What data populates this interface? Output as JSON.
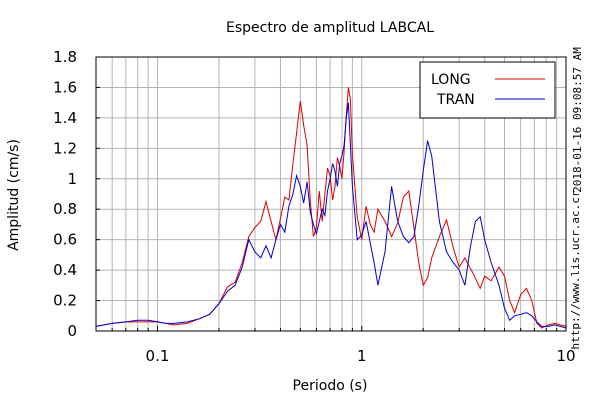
{
  "chart_data": {
    "type": "line",
    "title": "Espectro de amplitud LABCAL",
    "xlabel": "Periodo (s)",
    "ylabel": "Amplitud (cm/s)",
    "xscale": "log",
    "xlim": [
      0.05,
      10
    ],
    "ylim": [
      0,
      1.8
    ],
    "grid": true,
    "legend_position": "top-right",
    "x_ticks": [
      {
        "value": 0.1,
        "label": "0.1"
      },
      {
        "value": 1,
        "label": "1"
      },
      {
        "value": 10,
        "label": "10"
      }
    ],
    "y_ticks": [
      {
        "value": 0,
        "label": "0"
      },
      {
        "value": 0.2,
        "label": "0.2"
      },
      {
        "value": 0.4,
        "label": "0.4"
      },
      {
        "value": 0.6,
        "label": "0.6"
      },
      {
        "value": 0.8,
        "label": "0.8"
      },
      {
        "value": 1.0,
        "label": "1"
      },
      {
        "value": 1.2,
        "label": "1.2"
      },
      {
        "value": 1.4,
        "label": "1.4"
      },
      {
        "value": 1.6,
        "label": "1.6"
      },
      {
        "value": 1.8,
        "label": "1.8"
      }
    ],
    "series": [
      {
        "name": "LONG",
        "color": "#dd0000",
        "points": [
          [
            0.05,
            0.03
          ],
          [
            0.06,
            0.05
          ],
          [
            0.07,
            0.06
          ],
          [
            0.08,
            0.06
          ],
          [
            0.09,
            0.06
          ],
          [
            0.1,
            0.06
          ],
          [
            0.11,
            0.05
          ],
          [
            0.12,
            0.04
          ],
          [
            0.14,
            0.05
          ],
          [
            0.16,
            0.08
          ],
          [
            0.18,
            0.11
          ],
          [
            0.2,
            0.18
          ],
          [
            0.22,
            0.29
          ],
          [
            0.24,
            0.32
          ],
          [
            0.26,
            0.45
          ],
          [
            0.28,
            0.62
          ],
          [
            0.3,
            0.68
          ],
          [
            0.32,
            0.72
          ],
          [
            0.34,
            0.85
          ],
          [
            0.36,
            0.72
          ],
          [
            0.38,
            0.6
          ],
          [
            0.4,
            0.74
          ],
          [
            0.42,
            0.88
          ],
          [
            0.44,
            0.86
          ],
          [
            0.46,
            1.1
          ],
          [
            0.48,
            1.3
          ],
          [
            0.5,
            1.51
          ],
          [
            0.52,
            1.35
          ],
          [
            0.54,
            1.22
          ],
          [
            0.56,
            0.85
          ],
          [
            0.58,
            0.62
          ],
          [
            0.6,
            0.68
          ],
          [
            0.62,
            0.92
          ],
          [
            0.64,
            0.72
          ],
          [
            0.66,
            0.9
          ],
          [
            0.68,
            1.07
          ],
          [
            0.7,
            1.02
          ],
          [
            0.72,
            0.86
          ],
          [
            0.74,
            0.95
          ],
          [
            0.76,
            1.14
          ],
          [
            0.78,
            1.08
          ],
          [
            0.8,
            1.0
          ],
          [
            0.82,
            1.18
          ],
          [
            0.84,
            1.42
          ],
          [
            0.86,
            1.6
          ],
          [
            0.88,
            1.52
          ],
          [
            0.9,
            1.16
          ],
          [
            0.95,
            0.75
          ],
          [
            1.0,
            0.6
          ],
          [
            1.05,
            0.82
          ],
          [
            1.1,
            0.7
          ],
          [
            1.15,
            0.65
          ],
          [
            1.2,
            0.8
          ],
          [
            1.3,
            0.72
          ],
          [
            1.4,
            0.62
          ],
          [
            1.5,
            0.71
          ],
          [
            1.6,
            0.88
          ],
          [
            1.7,
            0.92
          ],
          [
            1.8,
            0.68
          ],
          [
            1.9,
            0.45
          ],
          [
            2.0,
            0.3
          ],
          [
            2.1,
            0.35
          ],
          [
            2.2,
            0.48
          ],
          [
            2.4,
            0.62
          ],
          [
            2.6,
            0.73
          ],
          [
            2.8,
            0.55
          ],
          [
            3.0,
            0.42
          ],
          [
            3.2,
            0.48
          ],
          [
            3.5,
            0.38
          ],
          [
            3.8,
            0.28
          ],
          [
            4.0,
            0.36
          ],
          [
            4.3,
            0.33
          ],
          [
            4.7,
            0.42
          ],
          [
            5.0,
            0.36
          ],
          [
            5.3,
            0.2
          ],
          [
            5.6,
            0.12
          ],
          [
            6.0,
            0.24
          ],
          [
            6.4,
            0.28
          ],
          [
            6.8,
            0.2
          ],
          [
            7.2,
            0.05
          ],
          [
            7.6,
            0.02
          ],
          [
            8.2,
            0.04
          ],
          [
            8.8,
            0.05
          ],
          [
            9.4,
            0.04
          ],
          [
            10.0,
            0.03
          ]
        ]
      },
      {
        "name": "TRAN",
        "color": "#0000cc",
        "points": [
          [
            0.05,
            0.03
          ],
          [
            0.06,
            0.05
          ],
          [
            0.07,
            0.06
          ],
          [
            0.08,
            0.07
          ],
          [
            0.09,
            0.07
          ],
          [
            0.1,
            0.06
          ],
          [
            0.11,
            0.05
          ],
          [
            0.12,
            0.05
          ],
          [
            0.14,
            0.06
          ],
          [
            0.16,
            0.08
          ],
          [
            0.18,
            0.11
          ],
          [
            0.2,
            0.18
          ],
          [
            0.22,
            0.26
          ],
          [
            0.24,
            0.3
          ],
          [
            0.26,
            0.42
          ],
          [
            0.28,
            0.6
          ],
          [
            0.3,
            0.52
          ],
          [
            0.32,
            0.48
          ],
          [
            0.34,
            0.56
          ],
          [
            0.36,
            0.48
          ],
          [
            0.38,
            0.6
          ],
          [
            0.4,
            0.7
          ],
          [
            0.42,
            0.65
          ],
          [
            0.44,
            0.82
          ],
          [
            0.46,
            0.9
          ],
          [
            0.48,
            1.02
          ],
          [
            0.5,
            0.95
          ],
          [
            0.52,
            0.84
          ],
          [
            0.54,
            0.98
          ],
          [
            0.56,
            0.78
          ],
          [
            0.58,
            0.7
          ],
          [
            0.6,
            0.64
          ],
          [
            0.62,
            0.72
          ],
          [
            0.64,
            0.8
          ],
          [
            0.66,
            0.76
          ],
          [
            0.68,
            0.92
          ],
          [
            0.7,
            1.0
          ],
          [
            0.72,
            1.1
          ],
          [
            0.74,
            1.05
          ],
          [
            0.76,
            0.95
          ],
          [
            0.78,
            1.1
          ],
          [
            0.8,
            1.15
          ],
          [
            0.82,
            1.22
          ],
          [
            0.84,
            1.4
          ],
          [
            0.86,
            1.5
          ],
          [
            0.88,
            1.22
          ],
          [
            0.9,
            0.95
          ],
          [
            0.95,
            0.6
          ],
          [
            1.0,
            0.63
          ],
          [
            1.05,
            0.72
          ],
          [
            1.1,
            0.58
          ],
          [
            1.15,
            0.45
          ],
          [
            1.2,
            0.3
          ],
          [
            1.3,
            0.52
          ],
          [
            1.4,
            0.95
          ],
          [
            1.5,
            0.72
          ],
          [
            1.6,
            0.62
          ],
          [
            1.7,
            0.58
          ],
          [
            1.8,
            0.62
          ],
          [
            1.9,
            0.82
          ],
          [
            2.0,
            1.05
          ],
          [
            2.1,
            1.25
          ],
          [
            2.2,
            1.15
          ],
          [
            2.4,
            0.72
          ],
          [
            2.6,
            0.52
          ],
          [
            2.8,
            0.45
          ],
          [
            3.0,
            0.4
          ],
          [
            3.2,
            0.3
          ],
          [
            3.4,
            0.55
          ],
          [
            3.6,
            0.72
          ],
          [
            3.8,
            0.75
          ],
          [
            4.0,
            0.6
          ],
          [
            4.3,
            0.45
          ],
          [
            4.7,
            0.3
          ],
          [
            5.0,
            0.15
          ],
          [
            5.3,
            0.07
          ],
          [
            5.6,
            0.1
          ],
          [
            6.0,
            0.11
          ],
          [
            6.4,
            0.12
          ],
          [
            6.8,
            0.1
          ],
          [
            7.2,
            0.06
          ],
          [
            7.6,
            0.03
          ],
          [
            8.2,
            0.03
          ],
          [
            8.8,
            0.04
          ],
          [
            9.4,
            0.03
          ],
          [
            10.0,
            0.02
          ]
        ]
      }
    ]
  },
  "side_annotations": {
    "timestamp": "2018-01-16 09:08:57 AM",
    "url": "http://www.lis.ucr.ac.cr"
  }
}
